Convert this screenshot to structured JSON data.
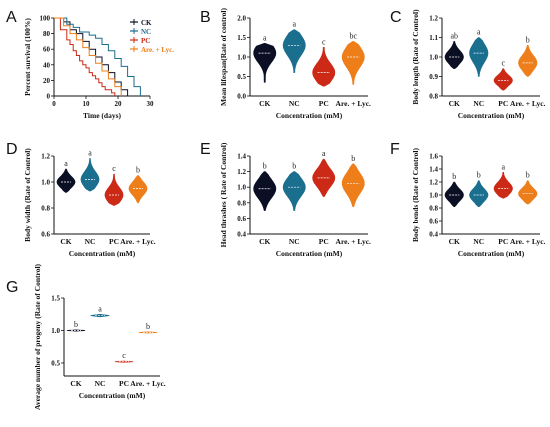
{
  "colors": {
    "CK": "#0b0f24",
    "NC": "#1a6e8e",
    "PC": "#cc2a16",
    "Lyc": "#ee7e1a"
  },
  "chart_data": [
    {
      "panel": "A",
      "type": "line",
      "subtype": "survival-step",
      "xlabel": "Time (days)",
      "ylabel": "Percent survival (100%)",
      "xlim": [
        0,
        30
      ],
      "ylim": [
        0,
        100
      ],
      "xticks": [
        "0",
        "10",
        "20",
        "30"
      ],
      "yticks": [
        "0",
        "20",
        "40",
        "60",
        "80",
        "100"
      ],
      "legend": "top-right",
      "series": [
        {
          "name": "CK",
          "color": "CK",
          "x": [
            0,
            3,
            5,
            7,
            9,
            11,
            13,
            15,
            17,
            19,
            21,
            23
          ],
          "y": [
            100,
            95,
            85,
            80,
            70,
            60,
            50,
            40,
            30,
            18,
            8,
            0
          ]
        },
        {
          "name": "NC",
          "color": "NC",
          "x": [
            0,
            4,
            6,
            8,
            11,
            13,
            15,
            17,
            19,
            21,
            23,
            25,
            27
          ],
          "y": [
            100,
            92,
            88,
            82,
            78,
            74,
            66,
            58,
            48,
            38,
            25,
            12,
            0
          ]
        },
        {
          "name": "PC",
          "color": "PC",
          "x": [
            0,
            2,
            4,
            5,
            6,
            7,
            8,
            9,
            10,
            11,
            12,
            13,
            14,
            15,
            16,
            18,
            19
          ],
          "y": [
            100,
            85,
            72,
            66,
            58,
            52,
            45,
            40,
            36,
            30,
            26,
            22,
            17,
            12,
            8,
            4,
            0
          ]
        },
        {
          "name": "Are. + Lyc.",
          "color": "Lyc",
          "x": [
            0,
            3,
            5,
            7,
            9,
            11,
            13,
            15,
            17,
            19,
            21
          ],
          "y": [
            100,
            90,
            80,
            72,
            62,
            52,
            42,
            32,
            22,
            12,
            0
          ]
        }
      ]
    },
    {
      "panel": "B",
      "type": "violin",
      "xlabel": "Concentration (mM)",
      "ylabel": "Mean lifespan(Rate of control)",
      "ylim": [
        0,
        2.0
      ],
      "yticks": [
        "0.0",
        "0.5",
        "1.0",
        "1.5",
        "2.0"
      ],
      "categories": [
        "CK",
        "NC",
        "PC",
        "Are. + Lyc."
      ],
      "medians": [
        1.1,
        1.3,
        0.6,
        1.0
      ],
      "mins": [
        0.35,
        0.6,
        0.25,
        0.3
      ],
      "maxs": [
        1.35,
        1.7,
        1.25,
        1.4
      ],
      "letters": [
        "a",
        "a",
        "c",
        "bc"
      ]
    },
    {
      "panel": "C",
      "type": "violin",
      "xlabel": "Concentration (mM)",
      "ylabel": "Body length (Rate of Control)",
      "ylim": [
        0.8,
        1.2
      ],
      "yticks": [
        "0.8",
        "0.9",
        "1.0",
        "1.1",
        "1.2"
      ],
      "categories": [
        "CK",
        "NC",
        "PC",
        "Are. + Lyc."
      ],
      "medians": [
        1.0,
        1.02,
        0.88,
        0.97
      ],
      "mins": [
        0.94,
        0.9,
        0.83,
        0.9
      ],
      "maxs": [
        1.08,
        1.1,
        0.94,
        1.06
      ],
      "letters": [
        "ab",
        "a",
        "c",
        "b"
      ]
    },
    {
      "panel": "D",
      "type": "violin",
      "xlabel": "Concentration (mM)",
      "ylabel": "Body width (Rate of Control)",
      "ylim": [
        0.6,
        1.2
      ],
      "yticks": [
        "0.6",
        "0.8",
        "1.0",
        "1.2"
      ],
      "categories": [
        "CK",
        "NC",
        "PC",
        "Are. + Lyc."
      ],
      "medians": [
        1.0,
        1.02,
        0.9,
        0.95
      ],
      "mins": [
        0.92,
        0.93,
        0.82,
        0.84
      ],
      "maxs": [
        1.1,
        1.18,
        1.06,
        1.05
      ],
      "letters": [
        "a",
        "a",
        "c",
        "b"
      ]
    },
    {
      "panel": "E",
      "type": "violin",
      "xlabel": "Concentration (mM)",
      "ylabel": "Head thrashes ( Rate of Control)",
      "ylim": [
        0.4,
        1.4
      ],
      "yticks": [
        "0.4",
        "0.6",
        "0.8",
        "1.0",
        "1.2",
        "1.4"
      ],
      "categories": [
        "CK",
        "NC",
        "PC",
        "Are. + Lyc."
      ],
      "medians": [
        0.98,
        1.0,
        1.12,
        1.05
      ],
      "mins": [
        0.7,
        0.7,
        0.88,
        0.75
      ],
      "maxs": [
        1.2,
        1.2,
        1.36,
        1.3
      ],
      "letters": [
        "b",
        "b",
        "a",
        "b"
      ]
    },
    {
      "panel": "F",
      "type": "violin",
      "xlabel": "Concentration (mM)",
      "ylabel": "Body bends (Rate of Control)",
      "ylim": [
        0.4,
        1.6
      ],
      "yticks": [
        "0.4",
        "0.6",
        "0.8",
        "1.0",
        "1.2",
        "1.4",
        "1.6"
      ],
      "categories": [
        "CK",
        "NC",
        "PC",
        "Are. + Lyc."
      ],
      "medians": [
        1.0,
        1.0,
        1.1,
        1.02
      ],
      "mins": [
        0.82,
        0.82,
        0.95,
        0.86
      ],
      "maxs": [
        1.2,
        1.22,
        1.35,
        1.22
      ],
      "letters": [
        "b",
        "b",
        "a",
        "b"
      ]
    },
    {
      "panel": "G",
      "type": "violin",
      "xlabel": "Concentration (mM)",
      "ylabel": "Average number of progeny (Rate of Control)",
      "ylim": [
        0.3,
        1.5
      ],
      "yticks": [
        "0.5",
        "1.0",
        "1.5"
      ],
      "categories": [
        "CK",
        "NC",
        "PC",
        "Are. + Lyc."
      ],
      "medians": [
        1.0,
        1.23,
        0.52,
        0.97
      ],
      "mins": [
        0.99,
        1.21,
        0.51,
        0.96
      ],
      "maxs": [
        1.01,
        1.25,
        0.53,
        0.98
      ],
      "letters": [
        "b",
        "a",
        "c",
        "b"
      ]
    }
  ]
}
